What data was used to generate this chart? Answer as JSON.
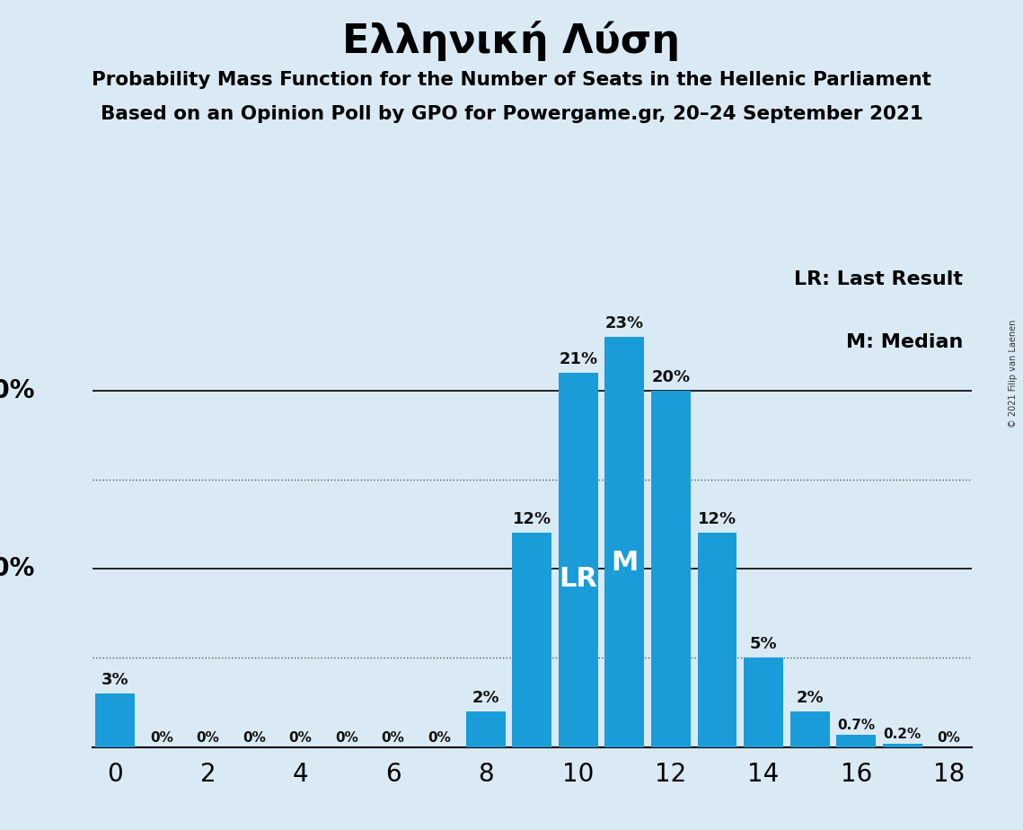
{
  "title": "Ελληνική Λύση",
  "subtitle1": "Probability Mass Function for the Number of Seats in the Hellenic Parliament",
  "subtitle2": "Based on an Opinion Poll by GPO for Powergame.gr, 20–24 September 2021",
  "copyright": "© 2021 Filip van Laenen",
  "legend1": "LR: Last Result",
  "legend2": "M: Median",
  "seats": [
    0,
    1,
    2,
    3,
    4,
    5,
    6,
    7,
    8,
    9,
    10,
    11,
    12,
    13,
    14,
    15,
    16,
    17,
    18
  ],
  "probabilities": [
    3.0,
    0.0,
    0.0,
    0.0,
    0.0,
    0.0,
    0.0,
    0.0,
    2.0,
    12.0,
    21.0,
    23.0,
    20.0,
    12.0,
    5.0,
    2.0,
    0.7,
    0.2,
    0.0
  ],
  "bar_color": "#1a9cd8",
  "bg_color": "#daeaf5",
  "label_color_dark": "#111111",
  "label_color_white": "#ffffff",
  "lr_seat": 10,
  "median_seat": 11,
  "dotted_lines": [
    5,
    15
  ],
  "xlim": [
    -0.5,
    18.5
  ],
  "ylim": [
    0,
    27
  ]
}
